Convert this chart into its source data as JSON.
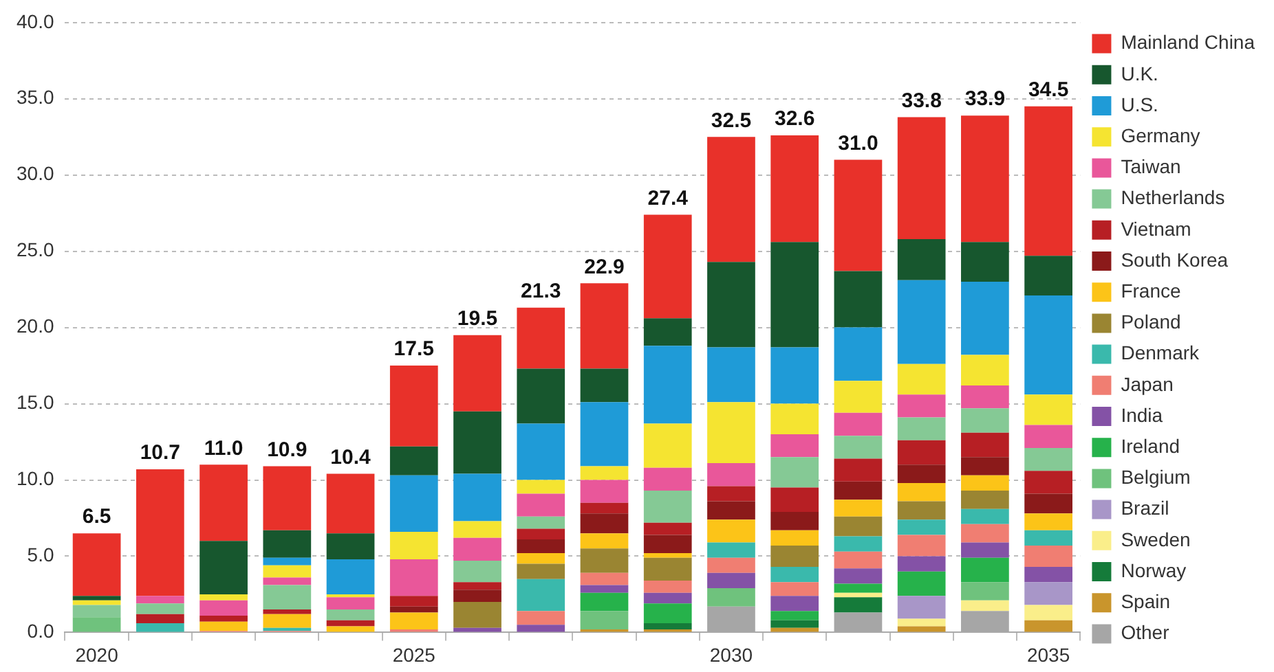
{
  "chart_data": {
    "type": "bar",
    "stacked": true,
    "legend": "right",
    "grid": "y",
    "categories": [
      "2020",
      null,
      null,
      null,
      null,
      "2025",
      null,
      null,
      null,
      null,
      "2030",
      null,
      null,
      null,
      null,
      "2035"
    ],
    "ylim": [
      0,
      40
    ],
    "yticks": [
      {
        "value": 0,
        "label": "0.0"
      },
      {
        "value": 5,
        "label": "5.0"
      },
      {
        "value": 10,
        "label": "10.0"
      },
      {
        "value": 15,
        "label": "15.0"
      },
      {
        "value": 20,
        "label": "20.0"
      },
      {
        "value": 25,
        "label": "25.0"
      },
      {
        "value": 30,
        "label": "30.0"
      },
      {
        "value": 35,
        "label": "35.0"
      },
      {
        "value": 40,
        "label": "40.0"
      }
    ],
    "totals": [
      "6.5",
      "10.7",
      "11.0",
      "10.9",
      "10.4",
      "17.5",
      "19.5",
      "21.3",
      "22.9",
      "27.4",
      "32.5",
      "32.6",
      "31.0",
      "33.8",
      "33.9",
      "34.5"
    ],
    "series": [
      {
        "name": "Other",
        "color": "#a6a6a6",
        "values": [
          0,
          0,
          0,
          0,
          0,
          0,
          0,
          0,
          0,
          0,
          1.7,
          0,
          1.3,
          0,
          1.4,
          0
        ]
      },
      {
        "name": "Spain",
        "color": "#c9952c",
        "values": [
          0,
          0,
          0,
          0,
          0,
          0,
          0,
          0,
          0.2,
          0.2,
          0,
          0.3,
          0,
          0.4,
          0,
          0.8
        ]
      },
      {
        "name": "Norway",
        "color": "#157b3a",
        "values": [
          0,
          0,
          0,
          0,
          0,
          0,
          0,
          0,
          0,
          0.4,
          0,
          0.5,
          1.0,
          0,
          0,
          0
        ]
      },
      {
        "name": "Sweden",
        "color": "#faee8a",
        "values": [
          0,
          0,
          0,
          0,
          0,
          0,
          0,
          0,
          0,
          0,
          0,
          0,
          0.3,
          0.5,
          0.7,
          1.0
        ]
      },
      {
        "name": "Brazil",
        "color": "#a896c8",
        "values": [
          0,
          0,
          0,
          0,
          0,
          0,
          0,
          0,
          0,
          0,
          0,
          0,
          0,
          1.5,
          0,
          1.5
        ]
      },
      {
        "name": "Belgium",
        "color": "#6fc27d",
        "values": [
          1.0,
          0,
          0,
          0,
          0,
          0,
          0,
          0,
          1.2,
          0,
          1.2,
          0,
          0,
          0,
          1.2,
          0
        ]
      },
      {
        "name": "Ireland",
        "color": "#26b24b",
        "values": [
          0,
          0,
          0,
          0,
          0,
          0,
          0,
          0,
          1.2,
          1.3,
          0,
          0.6,
          0.6,
          1.6,
          1.6,
          0
        ]
      },
      {
        "name": "India",
        "color": "#8452a6",
        "values": [
          0,
          0,
          0,
          0,
          0,
          0,
          0.3,
          0.5,
          0.5,
          0.7,
          1.0,
          1.0,
          1.0,
          1.0,
          1.0,
          1.0
        ]
      },
      {
        "name": "Japan",
        "color": "#f07e72",
        "values": [
          0,
          0,
          0.1,
          0.1,
          0,
          0.2,
          0,
          0.9,
          0.8,
          0.8,
          1.0,
          0.9,
          1.1,
          1.4,
          1.2,
          1.4
        ]
      },
      {
        "name": "Denmark",
        "color": "#3ab9ac",
        "values": [
          0,
          0.6,
          0,
          0.2,
          0,
          0,
          0,
          2.1,
          0,
          0,
          1.0,
          1.0,
          1.0,
          1.0,
          1.0,
          1.0
        ]
      },
      {
        "name": "Poland",
        "color": "#9a8532",
        "values": [
          0,
          0,
          0,
          0,
          0,
          0,
          1.7,
          1.0,
          1.6,
          1.5,
          0,
          1.4,
          1.3,
          1.2,
          1.2,
          0
        ]
      },
      {
        "name": "France",
        "color": "#fcc418",
        "values": [
          0,
          0,
          0.6,
          0.9,
          0.4,
          1.1,
          0,
          0.7,
          1.0,
          0.3,
          1.5,
          1.0,
          1.1,
          1.2,
          1.0,
          1.1
        ]
      },
      {
        "name": "South Korea",
        "color": "#8b1a1a",
        "values": [
          0,
          0,
          0,
          0,
          0,
          0.4,
          0.8,
          0.9,
          1.3,
          1.2,
          1.2,
          1.2,
          1.2,
          1.2,
          1.2,
          1.3
        ]
      },
      {
        "name": "Vietnam",
        "color": "#b71f24",
        "values": [
          0,
          0.6,
          0.4,
          0.3,
          0.4,
          0.7,
          0.5,
          0.7,
          0.7,
          0.8,
          1.0,
          1.6,
          1.5,
          1.6,
          1.6,
          1.5
        ]
      },
      {
        "name": "Netherlands",
        "color": "#85c995",
        "values": [
          0.8,
          0.7,
          0,
          1.6,
          0.7,
          0,
          1.4,
          0.8,
          0,
          2.1,
          0,
          2.0,
          1.5,
          1.5,
          1.6,
          1.5
        ]
      },
      {
        "name": "Taiwan",
        "color": "#e9579a",
        "values": [
          0,
          0.5,
          1.0,
          0.5,
          0.8,
          2.4,
          1.5,
          1.5,
          1.5,
          1.5,
          1.5,
          1.5,
          1.5,
          1.5,
          1.5,
          1.5
        ]
      },
      {
        "name": "Germany",
        "color": "#f5e431",
        "values": [
          0.3,
          0,
          0.4,
          0.8,
          0.2,
          1.8,
          1.1,
          0.9,
          0.9,
          2.9,
          4.0,
          2.0,
          2.1,
          2.0,
          2.0,
          2.0
        ]
      },
      {
        "name": "U.S.",
        "color": "#1f9bd7",
        "values": [
          0,
          0,
          0,
          0.5,
          2.3,
          3.7,
          3.1,
          3.7,
          4.2,
          5.1,
          3.6,
          3.7,
          3.5,
          5.5,
          4.8,
          6.5
        ]
      },
      {
        "name": "U.K.",
        "color": "#17572e",
        "values": [
          0.3,
          0,
          3.5,
          1.8,
          1.7,
          1.9,
          4.1,
          3.6,
          2.2,
          1.8,
          5.6,
          6.9,
          3.7,
          2.7,
          2.6,
          2.6
        ]
      },
      {
        "name": "Mainland China",
        "color": "#e8312a",
        "values": [
          4.1,
          8.3,
          5.0,
          4.2,
          3.9,
          5.3,
          5.0,
          4.0,
          5.6,
          6.8,
          8.2,
          7.0,
          7.3,
          8.0,
          8.3,
          9.8
        ]
      }
    ]
  }
}
